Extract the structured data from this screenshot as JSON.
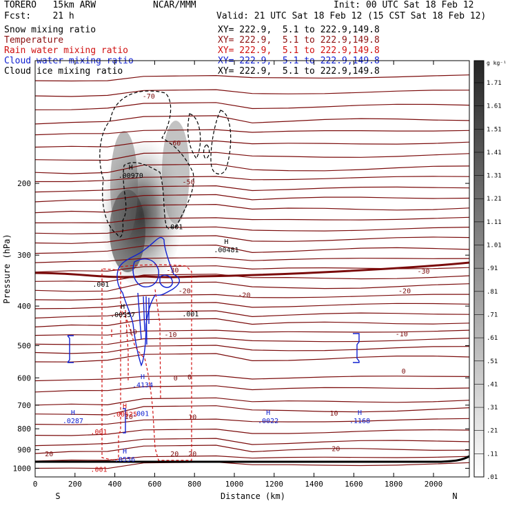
{
  "header": {
    "model": "TORERO   15km ARW",
    "org": "NCAR/MMM",
    "init": "Init: 00 UTC Sat 18 Feb 12",
    "fcst": "Fcst:    21 h",
    "valid": "Valid: 21 UTC Sat 18 Feb 12 (15 CST Sat 18 Feb 12)"
  },
  "legend": [
    {
      "label": "Snow mixing ratio",
      "xy": "XY= 222.9,  5.1 to 222.9,149.8",
      "color": "#000000"
    },
    {
      "label": "Temperature",
      "xy": "XY= 222.9,  5.1 to 222.9,149.8",
      "color": "#8b1010"
    },
    {
      "label": "Rain water mixing ratio",
      "xy": "XY= 222.9,  5.1 to 222.9,149.8",
      "color": "#d01010"
    },
    {
      "label": "Cloud water mixing ratio",
      "xy": "XY= 222.9,  5.1 to 222.9,149.8",
      "color": "#1020d0"
    },
    {
      "label": "Cloud ice mixing ratio",
      "xy": "XY= 222.9,  5.1 to 222.9,149.8",
      "color": "#000000"
    }
  ],
  "chart_data": {
    "type": "cross-section",
    "xlabel": "Distance (km)",
    "ylabel": "Pressure (hPa)",
    "x_ticks": [
      0,
      200,
      400,
      600,
      800,
      1000,
      1200,
      1400,
      1600,
      1800,
      2000
    ],
    "y_ticks": [
      200,
      300,
      400,
      500,
      600,
      700,
      800,
      900,
      1000
    ],
    "xlim": [
      0,
      2180
    ],
    "ylim": [
      1050,
      100
    ],
    "y_scale": "log",
    "left_end": "S",
    "right_end": "N",
    "colorbar": {
      "unit": "g kg⁻¹",
      "labels": [
        "1.71",
        "1.61",
        "1.51",
        "1.41",
        "1.31",
        "1.21",
        "1.11",
        "1.01",
        ".91",
        ".81",
        ".71",
        ".61",
        ".51",
        ".41",
        ".31",
        ".21",
        ".11",
        ".01"
      ]
    },
    "temperature_labels": [
      {
        "text": "-70",
        "x": 570,
        "p": 122
      },
      {
        "text": "-60",
        "x": 700,
        "p": 159
      },
      {
        "text": "-50",
        "x": 770,
        "p": 198
      },
      {
        "text": "-30",
        "x": 1950,
        "p": 328
      },
      {
        "text": "-30",
        "x": 690,
        "p": 326
      },
      {
        "text": "-20",
        "x": 1050,
        "p": 375
      },
      {
        "text": "-20",
        "x": 1855,
        "p": 366
      },
      {
        "text": "-20",
        "x": 750,
        "p": 366
      },
      {
        "text": "-10",
        "x": 480,
        "p": 462
      },
      {
        "text": "-10",
        "x": 1840,
        "p": 467
      },
      {
        "text": "-10",
        "x": 680,
        "p": 469
      },
      {
        "text": "0",
        "x": 1850,
        "p": 576
      },
      {
        "text": "0",
        "x": 775,
        "p": 596
      },
      {
        "text": "0",
        "x": 705,
        "p": 599
      },
      {
        "text": "10",
        "x": 1500,
        "p": 731
      },
      {
        "text": "10",
        "x": 790,
        "p": 747
      },
      {
        "text": "10",
        "x": 470,
        "p": 745
      },
      {
        "text": "20",
        "x": 1510,
        "p": 894
      },
      {
        "text": "20",
        "x": 70,
        "p": 919
      },
      {
        "text": "20",
        "x": 700,
        "p": 920
      },
      {
        "text": "20",
        "x": 790,
        "p": 920
      }
    ],
    "maxima": [
      {
        "text": ".00970",
        "x": 480,
        "p": 193,
        "color": "#000000"
      },
      {
        "text": ".00481",
        "x": 960,
        "p": 294,
        "color": "#000000"
      },
      {
        "text": ".00557",
        "x": 440,
        "p": 424,
        "color": "#000000"
      },
      {
        "text": ".4134",
        "x": 540,
        "p": 630,
        "color": "#1020d0"
      },
      {
        "text": ".00525",
        "x": 450,
        "p": 744,
        "color": "#d01010"
      },
      {
        "text": ".0287",
        "x": 190,
        "p": 772,
        "color": "#1020d0"
      },
      {
        "text": ".0022",
        "x": 1170,
        "p": 772,
        "color": "#1020d0"
      },
      {
        "text": ".1168",
        "x": 1630,
        "p": 772,
        "color": "#1020d0"
      },
      {
        "text": ".0556",
        "x": 450,
        "p": 961,
        "color": "#1020d0"
      }
    ],
    "contour_labels": [
      {
        "text": ".001",
        "x": 700,
        "p": 255,
        "color": "#000000"
      },
      {
        "text": ".001",
        "x": 330,
        "p": 353,
        "color": "#000000"
      },
      {
        "text": ".001",
        "x": 780,
        "p": 417,
        "color": "#000000"
      },
      {
        "text": ".001",
        "x": 320,
        "p": 812,
        "color": "#d01010"
      },
      {
        "text": ".001",
        "x": 320,
        "p": 1004,
        "color": "#d01010"
      },
      {
        "text": ".001",
        "x": 530,
        "p": 733,
        "color": "#1020d0"
      }
    ]
  }
}
